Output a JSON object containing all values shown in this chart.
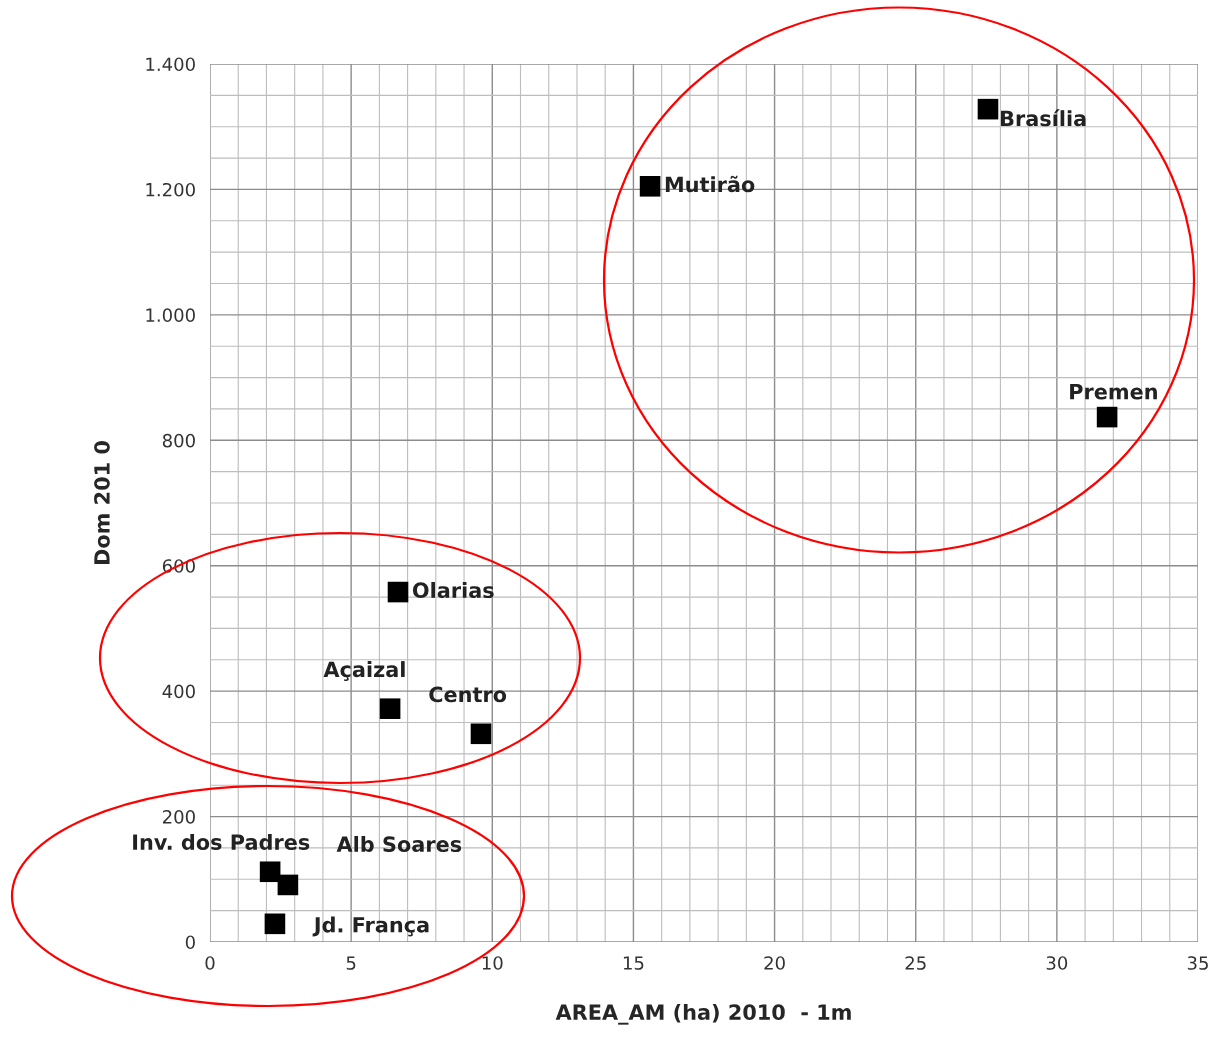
{
  "chart_data": {
    "type": "scatter",
    "xlabel": "AREA_AM (ha) 2010  - 1m",
    "ylabel": "Dom 201 0",
    "x": [
      27.56,
      15.59,
      31.78,
      6.66,
      6.38,
      9.6,
      2.13,
      2.76,
      2.3
    ],
    "values": [
      1328,
      1205,
      837,
      558,
      372,
      332,
      112,
      91,
      29
    ],
    "color": "#000000",
    "marker": "square",
    "grid": true,
    "xlim": [
      0,
      35
    ],
    "xticks": [
      0,
      5,
      10,
      15,
      20,
      25,
      30,
      35
    ],
    "ylim": [
      0,
      1400
    ],
    "yticks": [
      0,
      200,
      400,
      600,
      800,
      {
        "value": 1000,
        "label": "1.000"
      },
      {
        "value": 1200,
        "label": "1.200"
      },
      {
        "value": 1400,
        "label": "1.400"
      }
    ],
    "annotations": [
      {
        "text": "Brasília",
        "x": 27.56,
        "y": 1328
      },
      {
        "text": "Mutirão",
        "x": 15.59,
        "y": 1205
      },
      {
        "text": "Premen",
        "x": 31.78,
        "y": 837
      },
      {
        "text": "Olarias",
        "x": 6.66,
        "y": 558
      },
      {
        "text": "Açaizal",
        "x": 6.38,
        "y": 372
      },
      {
        "text": "Centro",
        "x": 9.6,
        "y": 332
      },
      {
        "text": "Inv. dos Padres",
        "x": 2.13,
        "y": 112
      },
      {
        "text": "Alb Soares",
        "x": 2.76,
        "y": 91
      },
      {
        "text": "Jd. França",
        "x": 2.3,
        "y": 29
      }
    ]
  }
}
